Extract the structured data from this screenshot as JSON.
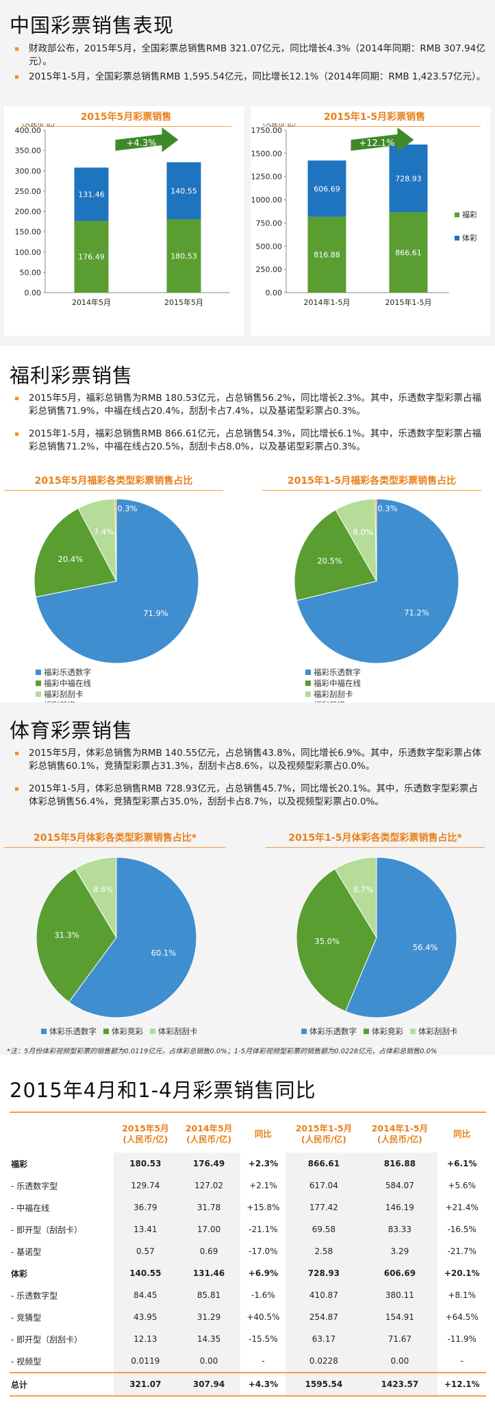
{
  "sections": {
    "overview": {
      "title": "中国彩票销售表现",
      "bullets": [
        "财政部公布，2015年5月，全国彩票总销售RMB 321.07亿元，同比增长4.3%（2014年同期：RMB 307.94亿元）。",
        "2015年1-5月，全国彩票总销售RMB 1,595.54亿元，同比增长12.1%（2014年同期：RMB 1,423.57亿元）。"
      ]
    },
    "welfare": {
      "title": "福利彩票销售",
      "bullets": [
        "2015年5月，福彩总销售为RMB 180.53亿元，占总销售56.2%，同比增长2.3%。其中，乐透数字型彩票占福彩总销售71.9%，中福在线占20.4%，刮刮卡占7.4%，以及基诺型彩票占0.3%。",
        "2015年1-5月，福彩总销售RMB 866.61亿元，占总销售54.3%，同比增长6.1%。其中，乐透数字型彩票占福彩总销售71.2%，中福在线占20.5%，刮刮卡占8.0%，以及基诺型彩票占0.3%。"
      ]
    },
    "sports": {
      "title": "体育彩票销售",
      "bullets": [
        "2015年5月，体彩总销售为RMB 140.55亿元，占总销售43.8%，同比增长6.9%。其中，乐透数字型彩票占体彩总销售60.1%，竞猜型彩票占31.3%，刮刮卡占8.6%，以及视频型彩票占0.0%。",
        "2015年1-5月，体彩总销售RMB 728.93亿元，占总销售45.7%，同比增长20.1%。其中，乐透数字型彩票占体彩总销售56.4%，竞猜型彩票占35.0%，刮刮卡占8.7%，以及视频型彩票占0.0%。"
      ],
      "note": "*注：5月份体彩视频型彩票的销售额为0.0119亿元，占体彩总销售0.0%；1-5月体彩视频型彩票的销售额为0.0228亿元，占体彩总销售0.0%"
    },
    "comparison": {
      "title": "2015年4月和1-4月彩票销售同比"
    }
  },
  "chart_data": [
    {
      "type": "bar",
      "stacked": true,
      "title": "2015年5月彩票销售",
      "ylabel": "（人民币 亿）",
      "categories": [
        "2014年5月",
        "2015年5月"
      ],
      "series": [
        {
          "name": "福彩",
          "values": [
            176.49,
            180.53
          ],
          "color": "#5a9e32"
        },
        {
          "name": "体彩",
          "values": [
            131.46,
            140.55
          ],
          "color": "#1f74bf"
        }
      ],
      "ylim": [
        0,
        400
      ],
      "yticks": [
        "0.00",
        "50.00",
        "100.00",
        "150.00",
        "200.00",
        "250.00",
        "300.00",
        "350.00",
        "400.00"
      ],
      "growth": "+4.3%"
    },
    {
      "type": "bar",
      "stacked": true,
      "title": "2015年1-5月彩票销售",
      "ylabel": "（人民币 亿）",
      "categories": [
        "2014年1-5月",
        "2015年1-5月"
      ],
      "series": [
        {
          "name": "福彩",
          "values": [
            816.88,
            866.61
          ],
          "color": "#5a9e32"
        },
        {
          "name": "体彩",
          "values": [
            606.69,
            728.93
          ],
          "color": "#1f74bf"
        }
      ],
      "ylim": [
        0,
        1750
      ],
      "yticks": [
        "0.00",
        "250.00",
        "500.00",
        "750.00",
        "1000.00",
        "1250.00",
        "1500.00",
        "1750.00"
      ],
      "growth": "+12.1%",
      "legend": [
        "福彩",
        "体彩"
      ]
    },
    {
      "type": "pie",
      "title": "2015年5月福彩各类型彩票销售占比",
      "slices": [
        {
          "name": "福彩乐透数字",
          "value": 71.9,
          "label": "71.9%",
          "color": "#3f8ecf"
        },
        {
          "name": "福彩中福在线",
          "value": 20.4,
          "label": "20.4%",
          "color": "#5a9e32"
        },
        {
          "name": "福彩刮刮卡",
          "value": 7.4,
          "label": "7.4%",
          "color": "#b5dc98"
        },
        {
          "name": "福彩基诺",
          "value": 0.3,
          "label": "0.3%",
          "color": "#f39200"
        }
      ]
    },
    {
      "type": "pie",
      "title": "2015年1-5月福彩各类型彩票销售占比",
      "slices": [
        {
          "name": "福彩乐透数字",
          "value": 71.2,
          "label": "71.2%",
          "color": "#3f8ecf"
        },
        {
          "name": "福彩中福在线",
          "value": 20.5,
          "label": "20.5%",
          "color": "#5a9e32"
        },
        {
          "name": "福彩刮刮卡",
          "value": 8.0,
          "label": "8.0%",
          "color": "#b5dc98"
        },
        {
          "name": "福彩基诺",
          "value": 0.3,
          "label": "0.3%",
          "color": "#f39200"
        }
      ]
    },
    {
      "type": "pie",
      "title": "2015年5月体彩各类型彩票销售占比*",
      "slices": [
        {
          "name": "体彩乐透数字",
          "value": 60.1,
          "label": "60.1%",
          "color": "#3f8ecf"
        },
        {
          "name": "体彩竞彩",
          "value": 31.3,
          "label": "31.3%",
          "color": "#5a9e32"
        },
        {
          "name": "体彩刮刮卡",
          "value": 8.6,
          "label": "8.6%",
          "color": "#b5dc98"
        }
      ]
    },
    {
      "type": "pie",
      "title": "2015年1-5月体彩各类型彩票销售占比*",
      "slices": [
        {
          "name": "体彩乐透数字",
          "value": 56.4,
          "label": "56.4%",
          "color": "#3f8ecf"
        },
        {
          "name": "体彩竞彩",
          "value": 35.0,
          "label": "35.0%",
          "color": "#5a9e32"
        },
        {
          "name": "体彩刮刮卡",
          "value": 8.7,
          "label": "8.7%",
          "color": "#b5dc98"
        }
      ]
    },
    {
      "type": "table",
      "headers": [
        "",
        "2015年5月\n(人民币/亿)",
        "2014年5月\n(人民币/亿)",
        "同比",
        "2015年1-5月\n(人民币/亿)",
        "2014年1-5月\n(人民币/亿)",
        "同比"
      ],
      "rows": [
        {
          "cells": [
            "福彩",
            "180.53",
            "176.49",
            "+2.3%",
            "866.61",
            "816.88",
            "+6.1%"
          ],
          "bold": true
        },
        {
          "cells": [
            "- 乐透数字型",
            "129.74",
            "127.02",
            "+2.1%",
            "617.04",
            "584.07",
            "+5.6%"
          ]
        },
        {
          "cells": [
            "- 中福在线",
            "36.79",
            "31.78",
            "+15.8%",
            "177.42",
            "146.19",
            "+21.4%"
          ]
        },
        {
          "cells": [
            "- 即开型（刮刮卡）",
            "13.41",
            "17.00",
            "-21.1%",
            "69.58",
            "83.33",
            "-16.5%"
          ]
        },
        {
          "cells": [
            "- 基诺型",
            "0.57",
            "0.69",
            "-17.0%",
            "2.58",
            "3.29",
            "-21.7%"
          ]
        },
        {
          "cells": [
            "体彩",
            "140.55",
            "131.46",
            "+6.9%",
            "728.93",
            "606.69",
            "+20.1%"
          ],
          "bold": true
        },
        {
          "cells": [
            "- 乐透数字型",
            "84.45",
            "85.81",
            "-1.6%",
            "410.87",
            "380.11",
            "+8.1%"
          ]
        },
        {
          "cells": [
            "- 竞猜型",
            "43.95",
            "31.29",
            "+40.5%",
            "254.87",
            "154.91",
            "+64.5%"
          ]
        },
        {
          "cells": [
            "- 即开型（刮刮卡）",
            "12.13",
            "14.35",
            "-15.5%",
            "63.17",
            "71.67",
            "-11.9%"
          ]
        },
        {
          "cells": [
            "- 视频型",
            "0.0119",
            "0.00",
            "-",
            "0.0228",
            "0.00",
            "-"
          ]
        },
        {
          "cells": [
            "总计",
            "321.07",
            "307.94",
            "+4.3%",
            "1595.54",
            "1423.57",
            "+12.1%"
          ],
          "bold": true,
          "total": true
        }
      ]
    }
  ]
}
